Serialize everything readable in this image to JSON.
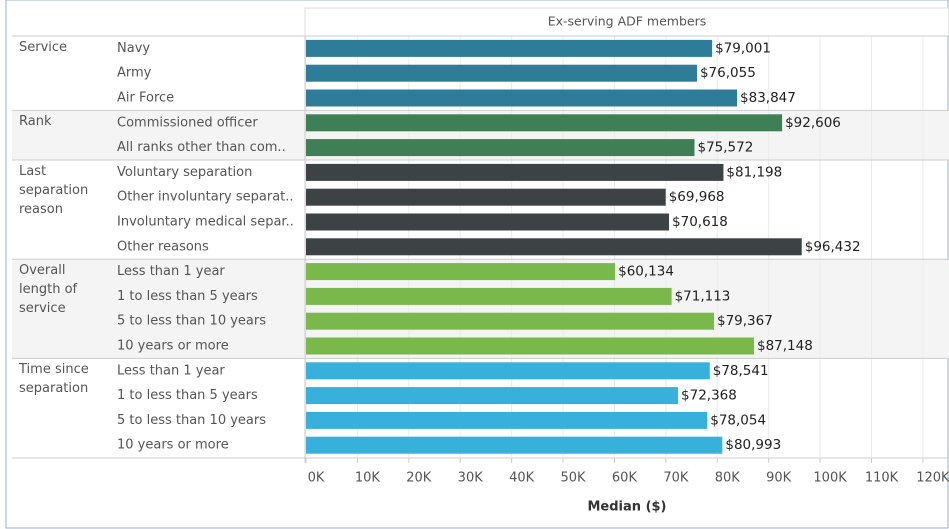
{
  "chart_data": {
    "type": "bar",
    "header": "Ex-serving ADF members",
    "xlabel": "Median ($)",
    "xlim": [
      0,
      124300
    ],
    "xticks": [
      {
        "value": 0,
        "label": "0K"
      },
      {
        "value": 10000,
        "label": "10K"
      },
      {
        "value": 20000,
        "label": "20K"
      },
      {
        "value": 30000,
        "label": "30K"
      },
      {
        "value": 40000,
        "label": "40K"
      },
      {
        "value": 50000,
        "label": "50K"
      },
      {
        "value": 60000,
        "label": "60K"
      },
      {
        "value": 70000,
        "label": "70K"
      },
      {
        "value": 80000,
        "label": "80K"
      },
      {
        "value": 90000,
        "label": "90K"
      },
      {
        "value": 100000,
        "label": "100K"
      },
      {
        "value": 110000,
        "label": "110K"
      },
      {
        "value": 120000,
        "label": "120K"
      }
    ],
    "grid": true,
    "groups": [
      {
        "name": "Service",
        "color": "#2d7d99",
        "categories": [
          "Navy",
          "Army",
          "Air Force"
        ],
        "values": [
          79001,
          76055,
          83847
        ],
        "value_labels": [
          "$79,001",
          "$76,055",
          "$83,847"
        ]
      },
      {
        "name": "Rank",
        "color": "#3e7f55",
        "categories": [
          "Commissioned officer",
          "All ranks other than com.."
        ],
        "values": [
          92606,
          75572
        ],
        "value_labels": [
          "$92,606",
          "$75,572"
        ]
      },
      {
        "name": "Last separation reason",
        "color": "#3d4245",
        "categories": [
          "Voluntary separation",
          "Other involuntary separat..",
          "Involuntary medical separ..",
          "Other reasons"
        ],
        "values": [
          81198,
          69968,
          70618,
          96432
        ],
        "value_labels": [
          "$81,198",
          "$69,968",
          "$70,618",
          "$96,432"
        ]
      },
      {
        "name": "Overall length of service",
        "color": "#79b84a",
        "categories": [
          "Less than 1 year",
          "1 to less than 5 years",
          "5 to less than 10 years",
          "10 years or more"
        ],
        "values": [
          60134,
          71113,
          79367,
          87148
        ],
        "value_labels": [
          "$60,134",
          "$71,113",
          "$79,367",
          "$87,148"
        ]
      },
      {
        "name": "Time since separation",
        "color": "#38b0dc",
        "categories": [
          "Less than 1 year",
          "1 to less than 5 years",
          "5 to less than 10 years",
          "10 years or more"
        ],
        "values": [
          78541,
          72368,
          78054,
          80993
        ],
        "value_labels": [
          "$78,541",
          "$72,368",
          "$78,054",
          "$80,993"
        ]
      }
    ]
  }
}
